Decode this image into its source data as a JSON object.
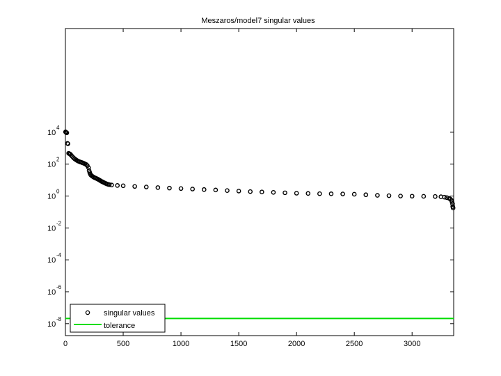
{
  "chart_data": {
    "type": "scatter",
    "title": "Meszaros/model7 singular values",
    "xlabel": "",
    "ylabel": "",
    "xlim": [
      0,
      3360
    ],
    "ylim_log10": [
      -8.75,
      10.5
    ],
    "y_scale": "log",
    "grid": false,
    "legend_position": "bottom-left",
    "x_ticks": [
      0,
      500,
      1000,
      1500,
      2000,
      2500,
      3000
    ],
    "y_ticks": [
      {
        "base": "10",
        "exp": "-8",
        "log10": -8
      },
      {
        "base": "10",
        "exp": "-6",
        "log10": -6
      },
      {
        "base": "10",
        "exp": "-4",
        "log10": -4
      },
      {
        "base": "10",
        "exp": "-2",
        "log10": -2
      },
      {
        "base": "10",
        "exp": "0",
        "log10": 0
      },
      {
        "base": "10",
        "exp": "2",
        "log10": 2
      },
      {
        "base": "10",
        "exp": "4",
        "log10": 4
      }
    ],
    "series": [
      {
        "name": "singular values",
        "marker": "circle-open",
        "color": "#000000",
        "points": [
          [
            1,
            10500
          ],
          [
            3,
            10200
          ],
          [
            5,
            9900
          ],
          [
            8,
            9600
          ],
          [
            12,
            9200
          ],
          [
            18,
            2000
          ],
          [
            22,
            1900
          ],
          [
            28,
            480
          ],
          [
            35,
            450
          ],
          [
            42,
            420
          ],
          [
            50,
            360
          ],
          [
            60,
            300
          ],
          [
            70,
            250
          ],
          [
            80,
            215
          ],
          [
            90,
            190
          ],
          [
            100,
            170
          ],
          [
            110,
            155
          ],
          [
            120,
            145
          ],
          [
            130,
            135
          ],
          [
            140,
            128
          ],
          [
            150,
            120
          ],
          [
            160,
            112
          ],
          [
            170,
            103
          ],
          [
            180,
            95
          ],
          [
            190,
            80
          ],
          [
            200,
            60
          ],
          [
            205,
            40
          ],
          [
            210,
            30
          ],
          [
            215,
            24
          ],
          [
            220,
            21
          ],
          [
            230,
            18
          ],
          [
            240,
            16
          ],
          [
            250,
            14.5
          ],
          [
            260,
            13.5
          ],
          [
            270,
            12.5
          ],
          [
            280,
            11.5
          ],
          [
            290,
            10.5
          ],
          [
            300,
            9.5
          ],
          [
            310,
            8.5
          ],
          [
            320,
            7.8
          ],
          [
            330,
            7.2
          ],
          [
            340,
            6.6
          ],
          [
            350,
            6.1
          ],
          [
            360,
            5.7
          ],
          [
            370,
            5.4
          ],
          [
            380,
            5.2
          ],
          [
            400,
            4.9
          ],
          [
            450,
            4.6
          ],
          [
            500,
            4.4
          ],
          [
            600,
            4.0
          ],
          [
            700,
            3.7
          ],
          [
            800,
            3.4
          ],
          [
            900,
            3.15
          ],
          [
            1000,
            2.95
          ],
          [
            1100,
            2.75
          ],
          [
            1200,
            2.55
          ],
          [
            1300,
            2.4
          ],
          [
            1400,
            2.2
          ],
          [
            1500,
            2.05
          ],
          [
            1600,
            1.9
          ],
          [
            1700,
            1.8
          ],
          [
            1800,
            1.7
          ],
          [
            1900,
            1.6
          ],
          [
            2000,
            1.5
          ],
          [
            2100,
            1.45
          ],
          [
            2200,
            1.4
          ],
          [
            2300,
            1.38
          ],
          [
            2400,
            1.35
          ],
          [
            2500,
            1.3
          ],
          [
            2600,
            1.2
          ],
          [
            2700,
            1.1
          ],
          [
            2800,
            1.05
          ],
          [
            2900,
            1.0
          ],
          [
            3000,
            0.98
          ],
          [
            3100,
            0.96
          ],
          [
            3200,
            0.94
          ],
          [
            3250,
            0.9
          ],
          [
            3280,
            0.85
          ],
          [
            3300,
            0.8
          ],
          [
            3320,
            0.72
          ],
          [
            3330,
            0.65
          ],
          [
            3340,
            0.55
          ],
          [
            3345,
            0.45
          ],
          [
            3350,
            0.33
          ],
          [
            3352,
            0.22
          ],
          [
            3355,
            0.18
          ]
        ]
      },
      {
        "name": "tolerance",
        "marker": "line",
        "color": "#00dd00",
        "value": 2.1e-08
      }
    ]
  }
}
